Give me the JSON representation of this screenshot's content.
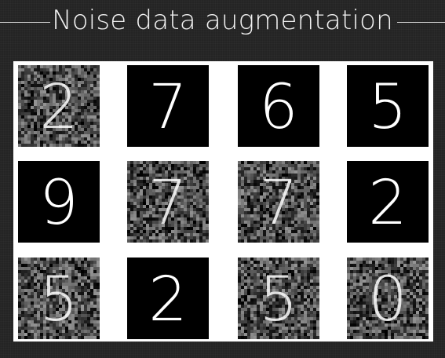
{
  "title": "Noise data augmentation",
  "colors": {
    "background": "#242424",
    "panel": "#ffffff",
    "tile": "#000000",
    "digit": "#ffffff"
  },
  "grid": {
    "rows": 3,
    "cols": 4,
    "samples": [
      {
        "digit": "2",
        "noisy": true
      },
      {
        "digit": "7",
        "noisy": false
      },
      {
        "digit": "6",
        "noisy": false
      },
      {
        "digit": "5",
        "noisy": false
      },
      {
        "digit": "9",
        "noisy": false
      },
      {
        "digit": "7",
        "noisy": true
      },
      {
        "digit": "7",
        "noisy": true
      },
      {
        "digit": "2",
        "noisy": false
      },
      {
        "digit": "5",
        "noisy": true
      },
      {
        "digit": "2",
        "noisy": false
      },
      {
        "digit": "5",
        "noisy": true
      },
      {
        "digit": "0",
        "noisy": true
      }
    ]
  }
}
